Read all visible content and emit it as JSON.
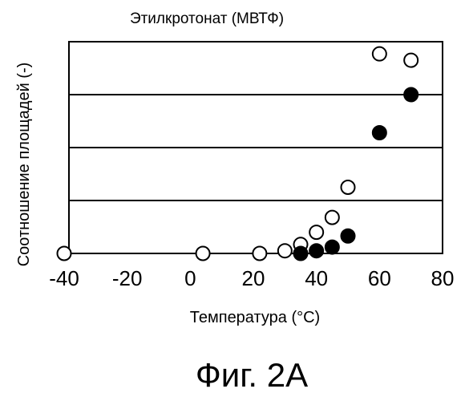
{
  "chart_data": {
    "type": "scatter",
    "title": "Этилкротонат (МВТФ)",
    "xlabel": "Температура (°С)",
    "ylabel": "Соотношение площадей (-)",
    "xlim": [
      -40,
      80
    ],
    "ylim": [
      0,
      4
    ],
    "xticks": [
      "-40",
      "-20",
      "0",
      "20",
      "40",
      "60",
      "80"
    ],
    "grid_y": [
      1,
      2,
      3
    ],
    "series": [
      {
        "marker": "open-circle",
        "color": "#000000",
        "points": [
          [
            -40,
            0
          ],
          [
            4,
            0
          ],
          [
            22,
            0
          ],
          [
            30,
            0.05
          ],
          [
            35,
            0.17
          ],
          [
            40,
            0.4
          ],
          [
            45,
            0.68
          ],
          [
            50,
            1.25
          ],
          [
            60,
            3.77
          ],
          [
            70,
            3.65
          ]
        ]
      },
      {
        "marker": "filled-circle",
        "color": "#000000",
        "points": [
          [
            35,
            0
          ],
          [
            40,
            0.05
          ],
          [
            45,
            0.12
          ],
          [
            50,
            0.33
          ],
          [
            60,
            2.28
          ],
          [
            70,
            3.0
          ]
        ]
      }
    ]
  },
  "caption": "Фиг. 2А"
}
